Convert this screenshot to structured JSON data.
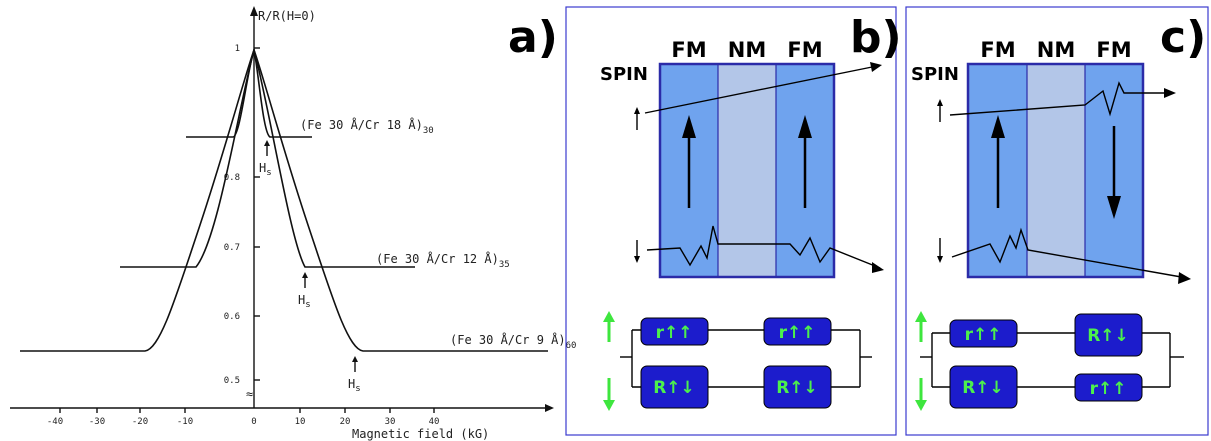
{
  "panel_a": {
    "label": "a)",
    "y_axis_label": "R/R(H=0)",
    "x_axis_label": "Magnetic field (kG)",
    "y_ticks": [
      "1",
      "0.8",
      "0.7",
      "0.6",
      "0.5"
    ],
    "x_ticks": [
      "-40",
      "-30",
      "-20",
      "-10",
      "0",
      "10",
      "20",
      "30",
      "40"
    ],
    "break_symbol": "≈",
    "curves": [
      {
        "label": "(Fe 30 Å/Cr 18 Å)",
        "subscript": "30",
        "hs_label": "H",
        "hs_sub": "s"
      },
      {
        "label": "(Fe 30 Å/Cr 12 Å)",
        "subscript": "35",
        "hs_label": "H",
        "hs_sub": "s"
      },
      {
        "label": "(Fe 30 Å/Cr 9 Å)",
        "subscript": "60",
        "hs_label": "H",
        "hs_sub": "s"
      }
    ]
  },
  "panel_b": {
    "label": "b)",
    "layers": [
      "FM",
      "NM",
      "FM"
    ],
    "spin_label": "SPIN",
    "resistors_top": [
      "r↑↑",
      "r↑↑"
    ],
    "resistors_bottom": [
      "R↑↓",
      "R↑↓"
    ]
  },
  "panel_c": {
    "label": "c)",
    "layers": [
      "FM",
      "NM",
      "FM"
    ],
    "spin_label": "SPIN",
    "resistors_top": [
      "r↑↑",
      "R↑↓"
    ],
    "resistors_bottom": [
      "R↑↓",
      "r↑↑"
    ]
  },
  "colors": {
    "fm_layer": "#6fa3ee",
    "nm_layer": "#b3c6e8",
    "resistor_fill": "#1c1ccc",
    "resistor_text": "#4cf04c",
    "green_arrow": "#3ee63e",
    "frame": "#3b3bcf"
  }
}
